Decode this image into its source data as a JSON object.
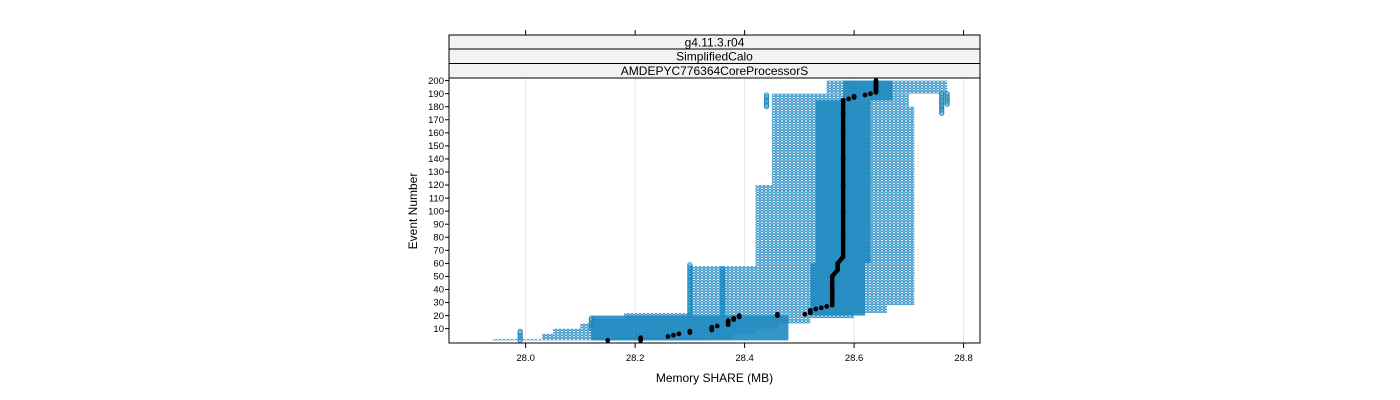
{
  "chart_data": {
    "type": "scatter",
    "panel_strips": [
      "g4.11.3.r04",
      "SimplifiedCalo",
      "AMDEPYC776364CoreProcessorS"
    ],
    "xlabel": "Memory SHARE (MB)",
    "ylabel": "Event Number",
    "xlim": [
      27.86,
      28.83
    ],
    "ylim": [
      -1,
      202
    ],
    "x_ticks": [
      28.0,
      28.2,
      28.4,
      28.6,
      28.8
    ],
    "x_tick_labels": [
      "28.0",
      "28.2",
      "28.4",
      "28.6",
      "28.8"
    ],
    "y_ticks": [
      10,
      20,
      30,
      40,
      50,
      60,
      70,
      80,
      90,
      100,
      110,
      120,
      130,
      140,
      150,
      160,
      170,
      180,
      190,
      200
    ],
    "y_tick_labels": [
      "10",
      "20",
      "30",
      "40",
      "50",
      "60",
      "70",
      "80",
      "90",
      "100",
      "110",
      "120",
      "130",
      "140",
      "150",
      "160",
      "170",
      "180",
      "190",
      "200"
    ],
    "grid": "vertical at x ticks",
    "series": [
      {
        "role": "individual runs",
        "marker": "open circle",
        "color": "#1f8ac0",
        "bands": [
          {
            "events": [
              1,
              2
            ],
            "x_min": 27.94,
            "x_max": 28.34
          },
          {
            "events": [
              2,
              6
            ],
            "x_min": 28.03,
            "x_max": 28.38
          },
          {
            "events": [
              6,
              10
            ],
            "x_min": 28.05,
            "x_max": 28.42
          },
          {
            "events": [
              10,
              14
            ],
            "x_min": 28.1,
            "x_max": 28.46
          },
          {
            "events": [
              14,
              18
            ],
            "x_min": 28.12,
            "x_max": 28.52
          },
          {
            "events": [
              18,
              22
            ],
            "x_min": 28.18,
            "x_max": 28.6
          },
          {
            "events": [
              22,
              28
            ],
            "x_min": 28.3,
            "x_max": 28.66
          },
          {
            "events": [
              28,
              58
            ],
            "x_min": 28.3,
            "x_max": 28.71
          },
          {
            "events": [
              58,
              120
            ],
            "x_min": 28.42,
            "x_max": 28.71
          },
          {
            "events": [
              120,
              180
            ],
            "x_min": 28.45,
            "x_max": 28.71
          },
          {
            "events": [
              180,
              190
            ],
            "x_min": 28.45,
            "x_max": 28.7
          },
          {
            "events": [
              190,
              200
            ],
            "x_min": 28.55,
            "x_max": 28.77
          }
        ],
        "dense_core": [
          {
            "events": [
              1,
              20
            ],
            "x_min": 28.12,
            "x_max": 28.48
          },
          {
            "events": [
              20,
              60
            ],
            "x_min": 28.52,
            "x_max": 28.62
          },
          {
            "events": [
              60,
              185
            ],
            "x_min": 28.53,
            "x_max": 28.63
          },
          {
            "events": [
              185,
              200
            ],
            "x_min": 28.58,
            "x_max": 28.67
          }
        ],
        "outlier_columns": [
          {
            "x": 27.99,
            "events": [
              1,
              8
            ]
          },
          {
            "x": 28.12,
            "events": [
              10,
              18
            ]
          },
          {
            "x": 28.3,
            "events": [
              20,
              59
            ]
          },
          {
            "x": 28.36,
            "events": [
              20,
              56
            ]
          },
          {
            "x": 28.44,
            "events": [
              180,
              189
            ]
          },
          {
            "x": 28.76,
            "events": [
              175,
              190
            ]
          },
          {
            "x": 28.77,
            "events": [
              182,
              190
            ]
          }
        ]
      },
      {
        "role": "median",
        "marker": "filled circle",
        "color": "#000000",
        "points": [
          [
            28.15,
            1
          ],
          [
            28.21,
            1
          ],
          [
            28.21,
            2
          ],
          [
            28.21,
            3
          ],
          [
            28.26,
            4
          ],
          [
            28.27,
            5
          ],
          [
            28.28,
            6
          ],
          [
            28.3,
            7
          ],
          [
            28.3,
            8
          ],
          [
            28.34,
            9
          ],
          [
            28.34,
            10
          ],
          [
            28.34,
            11
          ],
          [
            28.35,
            12
          ],
          [
            28.37,
            13
          ],
          [
            28.37,
            14
          ],
          [
            28.37,
            15
          ],
          [
            28.37,
            16
          ],
          [
            28.38,
            17
          ],
          [
            28.38,
            18
          ],
          [
            28.39,
            19
          ],
          [
            28.39,
            20
          ],
          [
            28.46,
            20
          ],
          [
            28.46,
            21
          ],
          [
            28.51,
            21
          ],
          [
            28.52,
            22
          ],
          [
            28.52,
            23
          ],
          [
            28.52,
            24
          ],
          [
            28.53,
            25
          ],
          [
            28.54,
            26
          ],
          [
            28.55,
            27
          ],
          [
            28.56,
            28
          ],
          [
            28.56,
            30
          ],
          [
            28.56,
            35
          ],
          [
            28.56,
            40
          ],
          [
            28.56,
            45
          ],
          [
            28.56,
            50
          ],
          [
            28.57,
            55
          ],
          [
            28.57,
            58
          ],
          [
            28.57,
            60
          ],
          [
            28.58,
            65
          ],
          [
            28.58,
            80
          ],
          [
            28.58,
            100
          ],
          [
            28.58,
            120
          ],
          [
            28.58,
            140
          ],
          [
            28.58,
            160
          ],
          [
            28.58,
            175
          ],
          [
            28.58,
            185
          ],
          [
            28.59,
            186
          ],
          [
            28.6,
            187
          ],
          [
            28.6,
            188
          ],
          [
            28.62,
            189
          ],
          [
            28.63,
            190
          ],
          [
            28.64,
            191
          ],
          [
            28.64,
            192
          ],
          [
            28.64,
            193
          ],
          [
            28.64,
            194
          ],
          [
            28.64,
            195
          ],
          [
            28.64,
            196
          ],
          [
            28.64,
            197
          ],
          [
            28.64,
            198
          ],
          [
            28.64,
            199
          ],
          [
            28.64,
            200
          ]
        ]
      }
    ]
  }
}
